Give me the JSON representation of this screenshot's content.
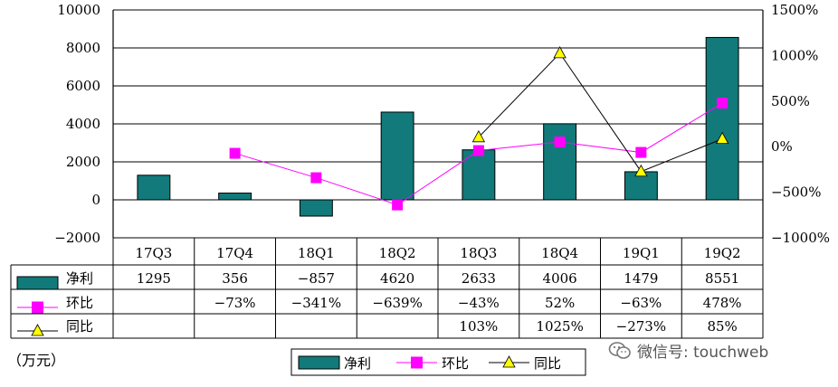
{
  "chart_data": {
    "type": "bar",
    "categories": [
      "17Q3",
      "17Q4",
      "18Q1",
      "18Q2",
      "18Q3",
      "18Q4",
      "19Q1",
      "19Q2"
    ],
    "ylim": [
      -2000,
      10000
    ],
    "y_ticks": [
      "10000",
      "8000",
      "6000",
      "4000",
      "2000",
      "0",
      "-2000"
    ],
    "y2lim": [
      -1000,
      1500
    ],
    "y2_ticks": [
      "1500%",
      "1000%",
      "500%",
      "0%",
      "-500%",
      "-1000%"
    ],
    "grid": true,
    "legend_position": "bottom",
    "series": [
      {
        "name": "净利",
        "type": "bar",
        "axis": "left",
        "color": "#127a7a",
        "values": [
          1295,
          356,
          -857,
          4620,
          2633,
          4006,
          1479,
          8551
        ],
        "labels": [
          "1295",
          "356",
          "-857",
          "4620",
          "2633",
          "4006",
          "1479",
          "8551"
        ]
      },
      {
        "name": "环比",
        "type": "line",
        "axis": "right",
        "color": "#ff00ff",
        "marker": "square",
        "values": [
          null,
          -73,
          -341,
          -639,
          -43,
          52,
          -63,
          478
        ],
        "labels": [
          "",
          "-73%",
          "-341%",
          "-639%",
          "-43%",
          "52%",
          "-63%",
          "478%"
        ]
      },
      {
        "name": "同比",
        "type": "line",
        "axis": "right",
        "color": "#000000",
        "marker_color": "#ffff00",
        "marker": "triangle",
        "values": [
          null,
          null,
          null,
          null,
          103,
          1025,
          -273,
          85
        ],
        "labels": [
          "",
          "",
          "",
          "",
          "103%",
          "1025%",
          "-273%",
          "85%"
        ]
      }
    ]
  },
  "unit_label": "（万元）",
  "watermark": "微信号: touchweb"
}
